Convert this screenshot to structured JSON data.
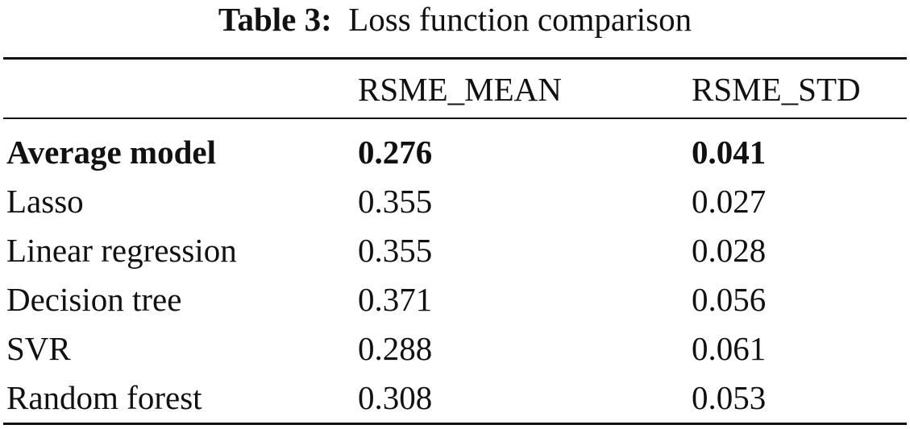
{
  "caption": {
    "label": "Table 3:",
    "text": "Loss function comparison"
  },
  "table": {
    "columns": [
      "",
      "RSME_MEAN",
      "RSME_STD"
    ],
    "rows": [
      {
        "model": "Average model",
        "rsme_mean": "0.276",
        "rsme_std": "0.041",
        "highlight": true
      },
      {
        "model": "Lasso",
        "rsme_mean": "0.355",
        "rsme_std": "0.027",
        "highlight": false
      },
      {
        "model": "Linear regression",
        "rsme_mean": "0.355",
        "rsme_std": "0.028",
        "highlight": false
      },
      {
        "model": "Decision tree",
        "rsme_mean": "0.371",
        "rsme_std": "0.056",
        "highlight": false
      },
      {
        "model": "SVR",
        "rsme_mean": "0.288",
        "rsme_std": "0.061",
        "highlight": false
      },
      {
        "model": "Random forest",
        "rsme_mean": "0.308",
        "rsme_std": "0.053",
        "highlight": false
      }
    ]
  }
}
